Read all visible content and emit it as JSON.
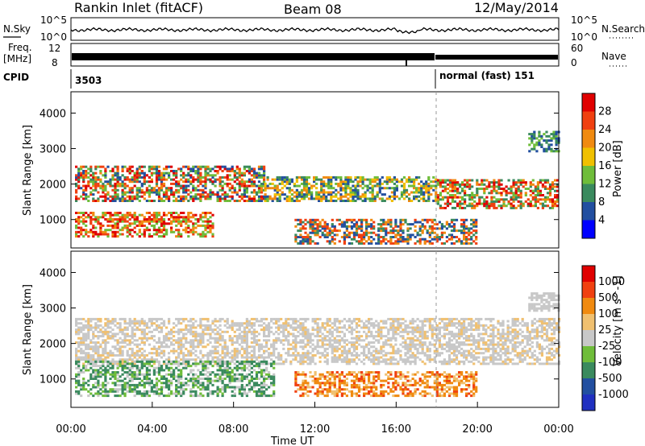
{
  "header": {
    "station": "Rankin Inlet (fitACF)",
    "beam": "Beam 08",
    "date": "12/May/2014"
  },
  "top_panels": {
    "nsky_label": "N.Sky",
    "nsearch_label": "N.Search",
    "freq_label_1": "Freq.",
    "freq_label_2": "[MHz]",
    "nave_label": "Nave",
    "cpid_label": "CPID",
    "nsky_ticks": [
      "10^5",
      "10^0"
    ],
    "nsearch_ticks": [
      "10^5",
      "10^0"
    ],
    "freq_ticks": [
      "12",
      "8"
    ],
    "nave_ticks": [
      "60",
      "0"
    ],
    "cpid_segments": [
      {
        "label": "3503"
      },
      {
        "label": "normal (fast) 151"
      }
    ]
  },
  "colors": {
    "power_scale": [
      "#0000ff",
      "#224fa0",
      "#3a8a5e",
      "#6fbd3a",
      "#f0c000",
      "#f08a10",
      "#f04010",
      "#e00000"
    ],
    "velocity_scale": [
      "#e00000",
      "#f04010",
      "#f08a10",
      "#f0c070",
      "#c8c8c8",
      "#6fbd3a",
      "#3a8a5e",
      "#224fa0",
      "#2030c0"
    ]
  },
  "chart_data": [
    {
      "type": "heatmap",
      "name": "power",
      "ylabel": "Slant Range [km]",
      "xlabel": "",
      "y_ticks": [
        "1000",
        "2000",
        "3000",
        "4000"
      ],
      "ylim": [
        200,
        4600
      ],
      "x_ticks": [
        "00:00",
        "04:00",
        "08:00",
        "12:00",
        "16:00",
        "20:00",
        "00:00"
      ],
      "xlim_hours": [
        0,
        24
      ],
      "colorbar_label": "Power [dB]",
      "colorbar_ticks": [
        "4",
        "8",
        "12",
        "16",
        "20",
        "24",
        "28"
      ],
      "colorbar_range": [
        0,
        30
      ],
      "scan_mode_change_hour": 18.0
    },
    {
      "type": "heatmap",
      "name": "velocity",
      "ylabel": "Slant Range [km]",
      "xlabel": "Time UT",
      "y_ticks": [
        "1000",
        "2000",
        "3000",
        "4000"
      ],
      "ylim": [
        200,
        4600
      ],
      "x_ticks": [
        "00:00",
        "04:00",
        "08:00",
        "12:00",
        "16:00",
        "20:00",
        "00:00"
      ],
      "xlim_hours": [
        0,
        24
      ],
      "colorbar_label": "Velocity [m s^-1]",
      "colorbar_ticks": [
        "1000",
        "500",
        "100",
        "25",
        "-25",
        "-100",
        "-500",
        "-1000"
      ],
      "scan_mode_change_hour": 18.0
    }
  ]
}
